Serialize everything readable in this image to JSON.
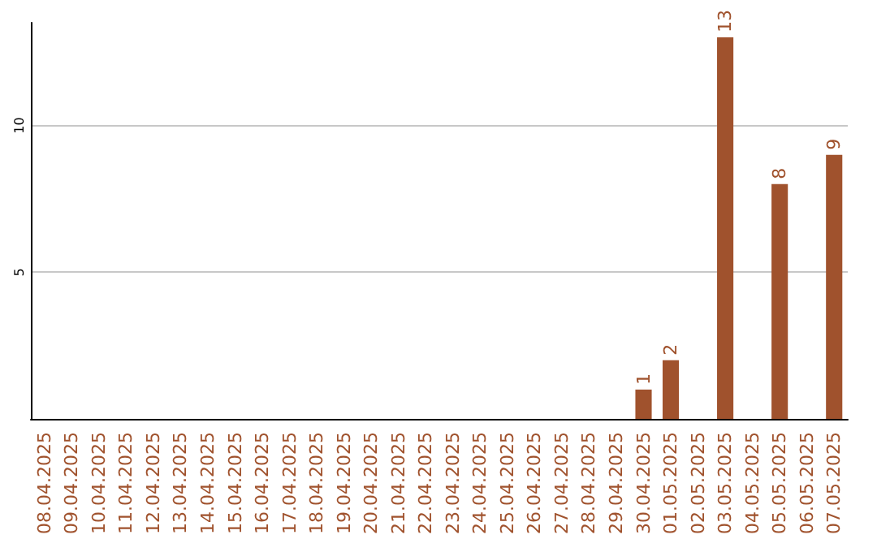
{
  "chart_data": {
    "type": "bar",
    "categories": [
      "08.04.2025",
      "09.04.2025",
      "10.04.2025",
      "11.04.2025",
      "12.04.2025",
      "13.04.2025",
      "14.04.2025",
      "15.04.2025",
      "16.04.2025",
      "17.04.2025",
      "18.04.2025",
      "19.04.2025",
      "20.04.2025",
      "21.04.2025",
      "22.04.2025",
      "23.04.2025",
      "24.04.2025",
      "25.04.2025",
      "26.04.2025",
      "27.04.2025",
      "28.04.2025",
      "29.04.2025",
      "30.04.2025",
      "01.05.2025",
      "02.05.2025",
      "03.05.2025",
      "04.05.2025",
      "05.05.2025",
      "06.05.2025",
      "07.05.2025"
    ],
    "values": [
      0,
      0,
      0,
      0,
      0,
      0,
      0,
      0,
      0,
      0,
      0,
      0,
      0,
      0,
      0,
      0,
      0,
      0,
      0,
      0,
      0,
      0,
      1,
      2,
      0,
      13,
      0,
      8,
      0,
      9
    ],
    "value_labels": [
      null,
      null,
      null,
      null,
      null,
      null,
      null,
      null,
      null,
      null,
      null,
      null,
      null,
      null,
      null,
      null,
      null,
      null,
      null,
      null,
      null,
      null,
      "1",
      "2",
      null,
      "13",
      null,
      "8",
      null,
      "9"
    ],
    "color": "#a0522d",
    "ylim": [
      0,
      13.5
    ],
    "yticks": [
      5,
      10
    ],
    "grid": "y"
  }
}
